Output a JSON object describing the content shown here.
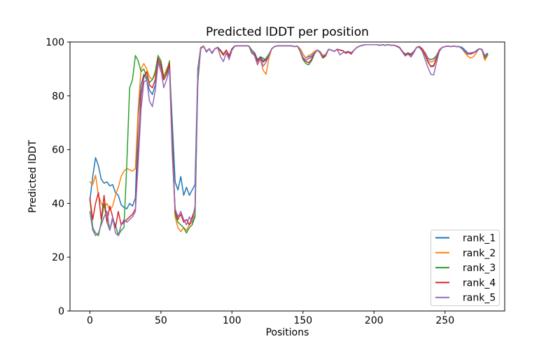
{
  "chart_data": {
    "type": "line",
    "title": "Predicted lDDT per position",
    "xlabel": "Positions",
    "ylabel": "Predicted lDDT",
    "xlim": [
      -14,
      292
    ],
    "ylim": [
      0,
      100
    ],
    "xticks": [
      0,
      50,
      100,
      150,
      200,
      250
    ],
    "yticks": [
      0,
      20,
      40,
      60,
      80,
      100
    ],
    "grid": false,
    "legend_position": "lower right",
    "background_color": "#ffffff",
    "spine_color": "#000000",
    "x": [
      0,
      2,
      4,
      6,
      8,
      10,
      12,
      14,
      16,
      18,
      20,
      22,
      24,
      26,
      28,
      30,
      32,
      34,
      36,
      38,
      40,
      42,
      44,
      46,
      48,
      50,
      52,
      54,
      56,
      58,
      60,
      62,
      64,
      66,
      68,
      70,
      72,
      74,
      76,
      78,
      80,
      82,
      84,
      86,
      88,
      90,
      92,
      94,
      96,
      98,
      100,
      102,
      104,
      106,
      108,
      110,
      112,
      114,
      116,
      118,
      120,
      122,
      124,
      126,
      128,
      130,
      132,
      134,
      136,
      138,
      140,
      142,
      144,
      146,
      148,
      150,
      152,
      154,
      156,
      158,
      160,
      162,
      164,
      166,
      168,
      170,
      172,
      174,
      176,
      178,
      180,
      182,
      184,
      186,
      188,
      190,
      192,
      194,
      196,
      198,
      200,
      202,
      204,
      206,
      208,
      210,
      212,
      214,
      216,
      218,
      220,
      222,
      224,
      226,
      228,
      230,
      232,
      234,
      236,
      238,
      240,
      242,
      244,
      246,
      248,
      250,
      252,
      254,
      256,
      258,
      260,
      262,
      264,
      266,
      268,
      270,
      272,
      274,
      276,
      278,
      280
    ],
    "series": [
      {
        "name": "rank_1",
        "color": "#1f77b4",
        "values": [
          41,
          50,
          57,
          54,
          49,
          47.5,
          48,
          46.5,
          47,
          44,
          43,
          39.5,
          38.5,
          38,
          40,
          39,
          42,
          72,
          84,
          88,
          86,
          82,
          80.5,
          84,
          93,
          91,
          86,
          88,
          91,
          70,
          48,
          45,
          50,
          43,
          46,
          43,
          45,
          47,
          90,
          98,
          98.5,
          96.5,
          97.5,
          96,
          97.5,
          98,
          97,
          95.5,
          97,
          95,
          97.5,
          98.5,
          98.6,
          98.6,
          98.6,
          98.6,
          98.5,
          97,
          96,
          93.5,
          94.5,
          94,
          93,
          94.5,
          97.5,
          98.3,
          98.6,
          98.6,
          98.6,
          98.6,
          98.6,
          98.6,
          98.3,
          98.5,
          97.5,
          95.5,
          94,
          94.5,
          94.8,
          96,
          97,
          96.5,
          94.5,
          95.5,
          97.3,
          97,
          96.5,
          97.3,
          97,
          96.8,
          96,
          96.5,
          96,
          97,
          98,
          98.5,
          98.8,
          99,
          99,
          99,
          99,
          99,
          98.8,
          99,
          98.8,
          99,
          98.8,
          98.8,
          98.5,
          98,
          96.5,
          95.5,
          96,
          95.5,
          96.5,
          98,
          98.3,
          97.5,
          96,
          94,
          93.5,
          93.8,
          95,
          97,
          98,
          98.3,
          98.5,
          98.3,
          98.5,
          98.3,
          98.3,
          98,
          97,
          96,
          95.5,
          96,
          96.8,
          97.5,
          97.3,
          95,
          95.8
        ]
      },
      {
        "name": "rank_2",
        "color": "#ff7f0e",
        "values": [
          48,
          47,
          50.5,
          43,
          40,
          38.5,
          40,
          37.5,
          39,
          43,
          46,
          50,
          52,
          53,
          52.5,
          52,
          53,
          75,
          90,
          92,
          90,
          87,
          86,
          88,
          92.5,
          89,
          87,
          90,
          92,
          60,
          35,
          31,
          29.5,
          31,
          30,
          32,
          33,
          36,
          88,
          98,
          98.5,
          96.5,
          97.5,
          96,
          97.5,
          98,
          96.5,
          95,
          97,
          94.5,
          97.5,
          98.5,
          98.6,
          98.6,
          98.6,
          98.6,
          98.5,
          96.5,
          95.5,
          92,
          93.5,
          89.5,
          88,
          94,
          97.5,
          98.3,
          98.6,
          98.6,
          98.6,
          98.6,
          98.6,
          98.6,
          98.3,
          98.5,
          97.5,
          95.5,
          94,
          95,
          95.5,
          96.5,
          97,
          96.5,
          95,
          95.5,
          97.3,
          97,
          96.5,
          97.3,
          97,
          96.8,
          96,
          96.5,
          96,
          97,
          98,
          98.5,
          98.8,
          99,
          99,
          99,
          99,
          99,
          98.8,
          99,
          98.8,
          99,
          98.8,
          98.8,
          98.5,
          98,
          96.5,
          95,
          95.8,
          95,
          96.3,
          98,
          98.3,
          97.5,
          95.5,
          93.5,
          92.5,
          93,
          94.5,
          97,
          98,
          98.3,
          98.5,
          98.3,
          98.5,
          98.3,
          98.3,
          97.5,
          96,
          94.8,
          94,
          94.5,
          96,
          97.5,
          97,
          93.2,
          95
        ]
      },
      {
        "name": "rank_3",
        "color": "#2ca02c",
        "values": [
          42,
          31,
          29,
          28,
          33,
          40,
          33,
          30,
          34,
          32,
          28,
          30,
          31,
          55,
          83,
          86,
          95,
          93,
          89,
          90,
          87,
          85,
          86,
          89,
          95,
          93,
          87,
          89,
          93,
          65,
          36,
          33,
          32,
          31,
          29,
          31,
          32,
          35,
          85,
          97.5,
          98.5,
          96.3,
          97.5,
          95.8,
          97.5,
          98,
          96.8,
          95.3,
          97,
          94.8,
          97.5,
          98.5,
          98.6,
          98.6,
          98.6,
          98.6,
          98.5,
          95.7,
          95.5,
          93,
          94.5,
          93,
          94,
          95.5,
          97.5,
          98.3,
          98.6,
          98.6,
          98.6,
          98.6,
          98.6,
          98.6,
          98.3,
          98.5,
          96.5,
          93.5,
          92,
          91.5,
          93,
          95.5,
          97,
          96,
          94,
          94.8,
          97.3,
          97,
          96.5,
          97.3,
          97,
          96.8,
          96,
          96.5,
          96,
          97,
          98,
          98.5,
          98.8,
          99,
          99,
          99,
          99,
          99,
          98.8,
          99,
          98.8,
          99,
          98.8,
          98.8,
          98.5,
          98,
          96.5,
          95.3,
          96,
          95.3,
          96.3,
          98,
          98.3,
          97.3,
          95,
          92.5,
          91,
          91.3,
          94,
          97,
          98,
          98.3,
          98.5,
          98.3,
          98.5,
          98.3,
          98.3,
          97.5,
          96.5,
          95.6,
          95.8,
          96,
          96.5,
          97.5,
          97.2,
          94,
          95.5
        ]
      },
      {
        "name": "rank_4",
        "color": "#d62728",
        "values": [
          42,
          34,
          40,
          44,
          34,
          43,
          33,
          39,
          35,
          31,
          37,
          32,
          33,
          34,
          35,
          36,
          38,
          60,
          80,
          87,
          89,
          84,
          83,
          86,
          94,
          92,
          86,
          88,
          92,
          62,
          37,
          34,
          36,
          33,
          34,
          32,
          35,
          38,
          87,
          97.5,
          98.5,
          96.4,
          97.5,
          95.9,
          97.5,
          98,
          96.7,
          95.2,
          97,
          94.6,
          97.5,
          98.5,
          98.6,
          98.6,
          98.6,
          98.6,
          98.5,
          96,
          95.5,
          92.8,
          94.3,
          92.5,
          93.5,
          95,
          97.5,
          98.3,
          98.6,
          98.6,
          98.6,
          98.6,
          98.6,
          98.6,
          98.3,
          98.5,
          96.8,
          94,
          92.8,
          92.3,
          93.5,
          95.8,
          97,
          96.2,
          94.3,
          95,
          97.3,
          97,
          96.5,
          97.3,
          97,
          96.8,
          95.8,
          96.2,
          95.5,
          97,
          98,
          98.5,
          98.8,
          99,
          99,
          99,
          99,
          99,
          98.8,
          99,
          98.8,
          99,
          98.8,
          98.8,
          98.5,
          98,
          96.5,
          95.2,
          95.8,
          95.2,
          96.3,
          98,
          98.3,
          97.3,
          95,
          92.8,
          90.8,
          91,
          93.8,
          97,
          98,
          98.3,
          98.5,
          98.3,
          98.5,
          98.3,
          98.3,
          97.5,
          96.5,
          95.5,
          95.7,
          96,
          96.5,
          97.5,
          97.2,
          94.5,
          95.3
        ]
      },
      {
        "name": "rank_5",
        "color": "#9467bd",
        "values": [
          37,
          30,
          28,
          29,
          32,
          35,
          37,
          30,
          35,
          29,
          28,
          32,
          34,
          33,
          34,
          35,
          37,
          55,
          75,
          85,
          86,
          78,
          76,
          82,
          92,
          90,
          83,
          86,
          90,
          58,
          38,
          35,
          37,
          34,
          32,
          35,
          33,
          39,
          88,
          97.5,
          98.5,
          96.2,
          97.5,
          95.7,
          97.5,
          97.8,
          94.5,
          92.7,
          96,
          93.5,
          97,
          98.4,
          98.6,
          98.6,
          98.6,
          98.6,
          98.4,
          96.2,
          94.8,
          91.5,
          93.8,
          91,
          92.5,
          95,
          97.5,
          98.3,
          98.6,
          98.6,
          98.6,
          98.6,
          98.6,
          98.6,
          98.3,
          98.5,
          96.8,
          94.3,
          93.2,
          93.8,
          94.3,
          96,
          97,
          96.3,
          94.8,
          95.2,
          97.3,
          97,
          96.5,
          97.3,
          95.2,
          96,
          96.3,
          96.5,
          96,
          97,
          98,
          98.5,
          98.8,
          99,
          99,
          99,
          99,
          99,
          98.8,
          99,
          98.8,
          99,
          98.8,
          98.8,
          98.3,
          97.8,
          96.2,
          94.8,
          95.5,
          94.4,
          96,
          98,
          98,
          96.5,
          93.5,
          90.5,
          88,
          87.7,
          92.5,
          96.5,
          98,
          98.3,
          98.5,
          98.3,
          98.5,
          98.3,
          98.3,
          97.5,
          96.5,
          95.8,
          96,
          96.2,
          96.5,
          97.5,
          97.2,
          94.8,
          95.2
        ]
      }
    ]
  }
}
